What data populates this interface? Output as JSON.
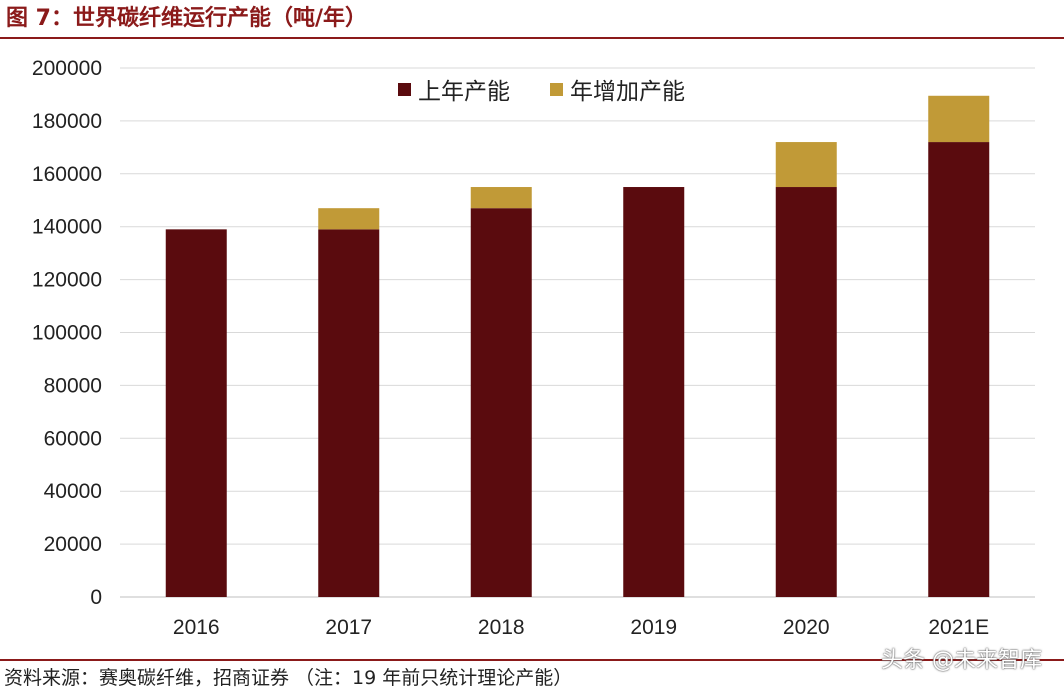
{
  "title": "图 7：世界碳纤维运行产能（吨/年）",
  "source_note": "资料来源：赛奥碳纤维，招商证券 （注：19 年前只统计理论产能）",
  "watermark": "头条 @未来智库",
  "colors": {
    "title": "#8b1a1a",
    "rule": "#8b1a1a",
    "base_series": "#5a0b0e",
    "added_series": "#c19a37",
    "gridline": "#d9d9d9"
  },
  "chart_data": {
    "type": "bar",
    "stacked": true,
    "title": "世界碳纤维运行产能（吨/年）",
    "xlabel": "",
    "ylabel": "",
    "categories": [
      "2016",
      "2017",
      "2018",
      "2019",
      "2020",
      "2021E"
    ],
    "series": [
      {
        "name": "上年产能",
        "values": [
          139000,
          139000,
          147000,
          155000,
          155000,
          172000
        ]
      },
      {
        "name": "年增加产能",
        "values": [
          0,
          8000,
          8000,
          0,
          17000,
          17500
        ]
      }
    ],
    "ylim": [
      0,
      200000
    ],
    "yticks": [
      0,
      20000,
      40000,
      60000,
      80000,
      100000,
      120000,
      140000,
      160000,
      180000,
      200000
    ],
    "grid": true,
    "legend": "top-center"
  }
}
